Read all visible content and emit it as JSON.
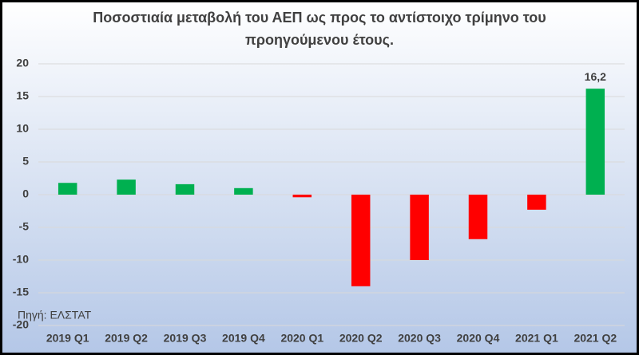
{
  "chart_data": {
    "type": "bar",
    "title": "Ποσοστιαία μεταβολή του ΑΕΠ ως προς το αντίστοιχο τρίμηνο του προηγούμενου έτους.",
    "categories": [
      "2019 Q1",
      "2019 Q2",
      "2019 Q3",
      "2019 Q4",
      "2020 Q1",
      "2020 Q2",
      "2020 Q3",
      "2020 Q4",
      "2021 Q1",
      "2021 Q2"
    ],
    "values": [
      1.8,
      2.3,
      1.6,
      1.0,
      -0.4,
      -14.0,
      -10.0,
      -6.8,
      -2.3,
      16.2
    ],
    "value_labels": [
      null,
      null,
      null,
      null,
      null,
      null,
      null,
      null,
      null,
      "16,2"
    ],
    "positive_color": "#00b050",
    "negative_color": "#ff0000",
    "ylim": [
      -20,
      20
    ],
    "yticks": [
      -20,
      -15,
      -10,
      -5,
      0,
      5,
      10,
      15,
      20
    ],
    "grid": true,
    "source": "Πηγή: ΕΛΣΤΑΤ"
  }
}
